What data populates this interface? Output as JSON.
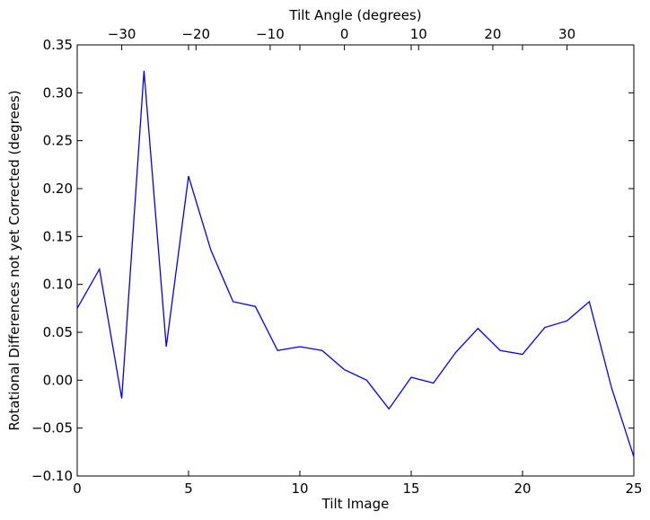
{
  "chart_data": {
    "type": "line",
    "xlabel": "Tilt Image",
    "ylabel": "Rotational Differences not yet Corrected (degrees)",
    "top_xlabel": "Tilt Angle (degrees)",
    "xlim": [
      0,
      25
    ],
    "ylim": [
      -0.1,
      0.35
    ],
    "grid": false,
    "x_ticks": [
      0,
      5,
      10,
      15,
      20,
      25
    ],
    "x_tick_labels": [
      "0",
      "5",
      "10",
      "15",
      "20",
      "25"
    ],
    "y_ticks": [
      -0.1,
      -0.05,
      0.0,
      0.05,
      0.1,
      0.15,
      0.2,
      0.25,
      0.3,
      0.35
    ],
    "y_tick_labels": [
      "−0.10",
      "−0.05",
      "0.00",
      "0.05",
      "0.10",
      "0.15",
      "0.20",
      "0.25",
      "0.30",
      "0.35"
    ],
    "top_axis": {
      "lim": [
        -36,
        39
      ],
      "ticks": [
        -30,
        -20,
        -10,
        0,
        10,
        20,
        30
      ],
      "tick_labels": [
        "−30",
        "−20",
        "−10",
        "0",
        "10",
        "20",
        "30"
      ]
    },
    "series": [
      {
        "color": "#0000ff",
        "x": [
          0,
          1,
          2,
          3,
          4,
          5,
          6,
          7,
          8,
          9,
          10,
          11,
          12,
          13,
          14,
          15,
          16,
          17,
          18,
          19,
          20,
          21,
          22,
          23,
          24,
          25
        ],
        "y": [
          0.075,
          0.116,
          -0.019,
          0.323,
          0.035,
          0.213,
          0.136,
          0.082,
          0.077,
          0.031,
          0.035,
          0.031,
          0.011,
          0.0,
          -0.03,
          0.003,
          -0.003,
          0.029,
          0.054,
          0.031,
          0.027,
          0.055,
          0.062,
          0.082,
          -0.008,
          -0.08
        ]
      }
    ]
  }
}
